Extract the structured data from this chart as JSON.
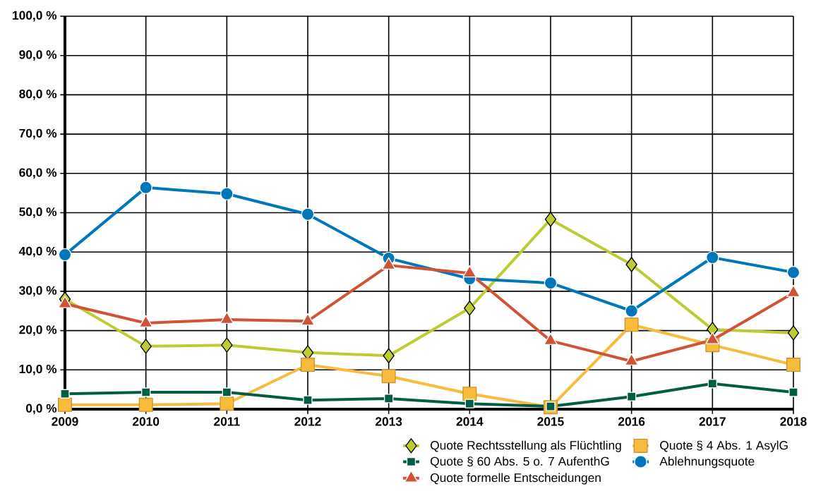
{
  "chart_data": {
    "type": "line",
    "categories": [
      "2009",
      "2010",
      "2011",
      "2012",
      "2013",
      "2014",
      "2015",
      "2016",
      "2017",
      "2018"
    ],
    "series": [
      {
        "name": "Quote Rechtsstellung als Flüchtling",
        "color": "#bfcb33",
        "marker": "diamond",
        "values": [
          28.0,
          16.0,
          16.3,
          14.4,
          13.6,
          25.7,
          48.3,
          36.8,
          20.3,
          19.4
        ]
      },
      {
        "name": "Quote § 4 Abs. 1 AsylG",
        "color": "#f8bb3c",
        "marker": "square",
        "values": [
          1.1,
          1.1,
          1.4,
          11.3,
          8.4,
          3.9,
          0.5,
          21.5,
          16.3,
          11.3
        ]
      },
      {
        "name": "Quote § 60 Abs. 5 o. 7 AufenthG",
        "color": "#005e45",
        "marker": "square",
        "values": [
          3.9,
          4.3,
          4.3,
          2.3,
          2.7,
          1.4,
          0.7,
          3.2,
          6.5,
          4.3
        ]
      },
      {
        "name": "Ablehnungsquote",
        "color": "#0077bb",
        "marker": "circle",
        "values": [
          39.3,
          56.4,
          54.8,
          49.6,
          38.4,
          33.2,
          32.1,
          25.0,
          38.6,
          34.8
        ]
      },
      {
        "name": "Quote formelle Entscheidungen",
        "color": "#d05338",
        "marker": "triangle",
        "values": [
          26.8,
          21.9,
          22.8,
          22.4,
          36.6,
          34.6,
          17.4,
          12.2,
          17.6,
          29.6
        ]
      }
    ],
    "ylim": [
      0,
      100
    ],
    "yticks": [
      {
        "value": 0,
        "label": "0,0 %"
      },
      {
        "value": 10,
        "label": "10,0 %"
      },
      {
        "value": 20,
        "label": "20,0 %"
      },
      {
        "value": 30,
        "label": "30,0 %"
      },
      {
        "value": 40,
        "label": "40,0 %"
      },
      {
        "value": 50,
        "label": "50,0 %"
      },
      {
        "value": 60,
        "label": "60,0 %"
      },
      {
        "value": 70,
        "label": "70,0 %"
      },
      {
        "value": 80,
        "label": "80,0 %"
      },
      {
        "value": 90,
        "label": "90,0 %"
      },
      {
        "value": 100,
        "label": "100,0 %"
      }
    ],
    "grid": true,
    "legend": "bottom right",
    "line_style": "solid"
  }
}
